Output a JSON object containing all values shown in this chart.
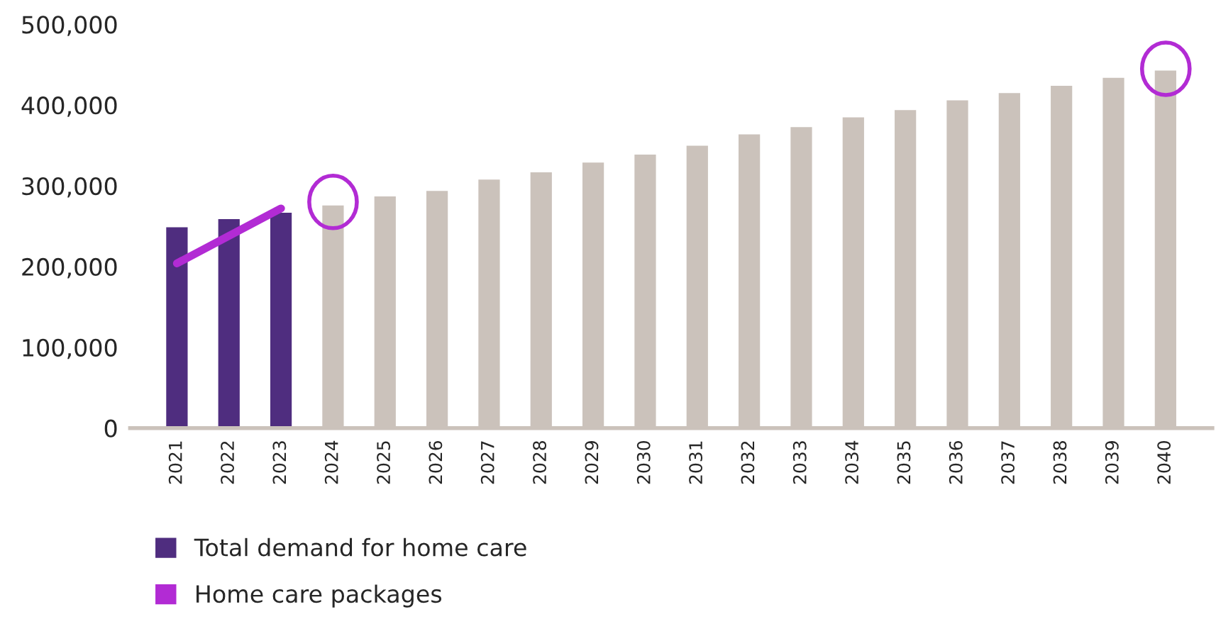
{
  "chart_data": {
    "type": "bar",
    "categories": [
      "2021",
      "2022",
      "2023",
      "2024",
      "2025",
      "2026",
      "2027",
      "2028",
      "2029",
      "2030",
      "2031",
      "2032",
      "2033",
      "2034",
      "2035",
      "2036",
      "2037",
      "2038",
      "2039",
      "2040"
    ],
    "series": [
      {
        "name": "Total demand for home care",
        "color": "#4f2d7f",
        "colors": [
          "#4f2d7f",
          "#4f2d7f",
          "#4f2d7f",
          "#cbc2bb",
          "#cbc2bb",
          "#cbc2bb",
          "#cbc2bb",
          "#cbc2bb",
          "#cbc2bb",
          "#cbc2bb",
          "#cbc2bb",
          "#cbc2bb",
          "#cbc2bb",
          "#cbc2bb",
          "#cbc2bb",
          "#cbc2bb",
          "#cbc2bb",
          "#cbc2bb",
          "#cbc2bb",
          "#cbc2bb"
        ],
        "values": [
          250000,
          260000,
          268000,
          277000,
          288000,
          295000,
          309000,
          318000,
          330000,
          340000,
          351000,
          365000,
          374000,
          386000,
          395000,
          407000,
          416000,
          425000,
          435000,
          444000
        ]
      },
      {
        "name": "Home care packages",
        "type": "line",
        "color": "#b22bd4",
        "values": [
          204000,
          238000,
          272000,
          null,
          null,
          null,
          null,
          null,
          null,
          null,
          null,
          null,
          null,
          null,
          null,
          null,
          null,
          null,
          null,
          null
        ]
      }
    ],
    "ylim": [
      0,
      500000
    ],
    "yticks": [
      {
        "value": 0,
        "label": "0"
      },
      {
        "value": 100000,
        "label": "100,000"
      },
      {
        "value": 200000,
        "label": "200,000"
      },
      {
        "value": 300000,
        "label": "300,000"
      },
      {
        "value": 400000,
        "label": "400,000"
      },
      {
        "value": 500000,
        "label": "500,000"
      }
    ],
    "grid": false,
    "legend": "bottom left"
  }
}
